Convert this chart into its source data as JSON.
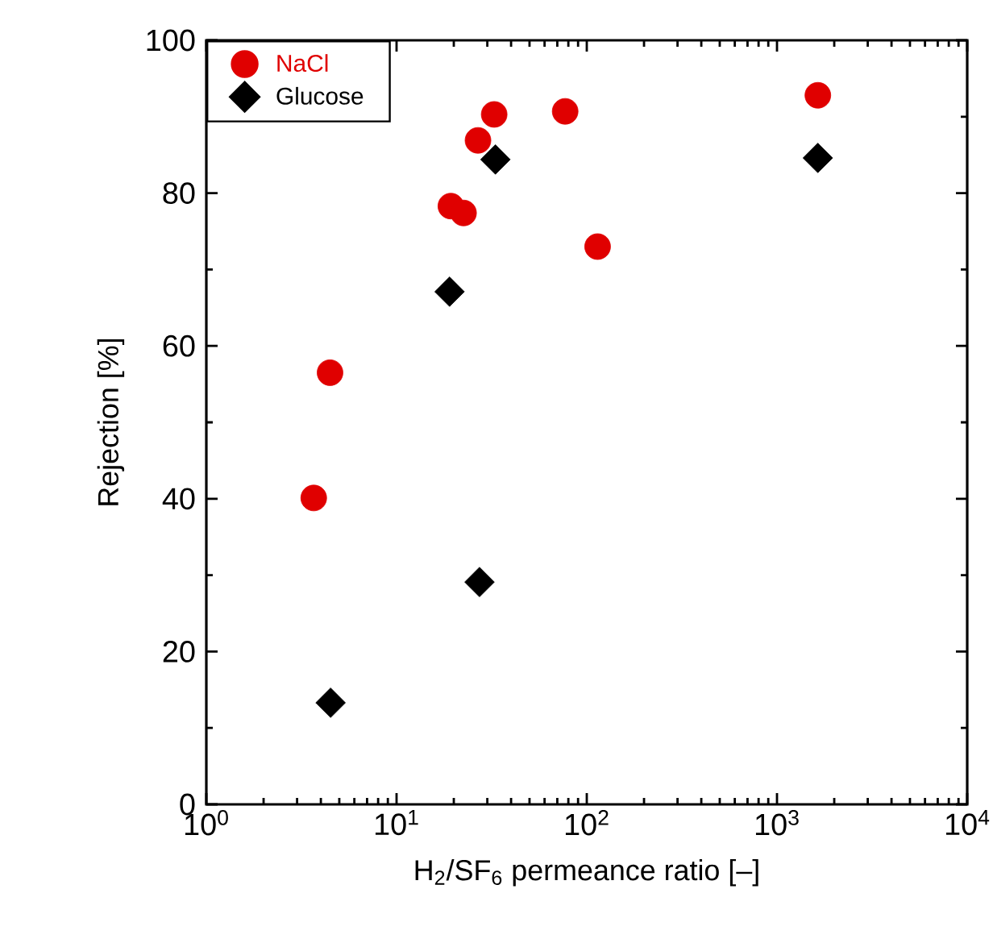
{
  "chart_data": {
    "type": "scatter",
    "xlabel": "H$_{2}$/SF$_{6}$ permeance ratio [–]",
    "ylabel": "Rejection [%]",
    "log": "x",
    "xlim": [
      1,
      10000
    ],
    "xticks": [
      {
        "value": 1,
        "label": "10$^{0}$"
      },
      {
        "value": 10,
        "label": "10$^{1}$"
      },
      {
        "value": 100,
        "label": "10$^{2}$"
      },
      {
        "value": 1000,
        "label": "10$^{3}$"
      },
      {
        "value": 10000,
        "label": "10$^{4}$"
      }
    ],
    "ylim": [
      0,
      100
    ],
    "yticks": [
      0,
      20,
      40,
      60,
      80,
      100
    ],
    "grid": false,
    "legend": "top left",
    "series": [
      {
        "name": "NaCl",
        "color": "#e00000",
        "marker": "circle",
        "x": [
          3.67,
          4.47,
          19.3,
          22.5,
          26.8,
          32.6,
          77,
          114,
          1640
        ],
        "values": [
          40.1,
          56.5,
          78.3,
          77.4,
          86.9,
          90.3,
          90.7,
          73.0,
          92.8
        ]
      },
      {
        "name": "Glucose",
        "color": "#000000",
        "marker": "diamond",
        "x": [
          4.5,
          19.0,
          27.3,
          33.1,
          1640
        ],
        "values": [
          13.3,
          67.1,
          29.1,
          84.4,
          84.6
        ]
      }
    ]
  }
}
